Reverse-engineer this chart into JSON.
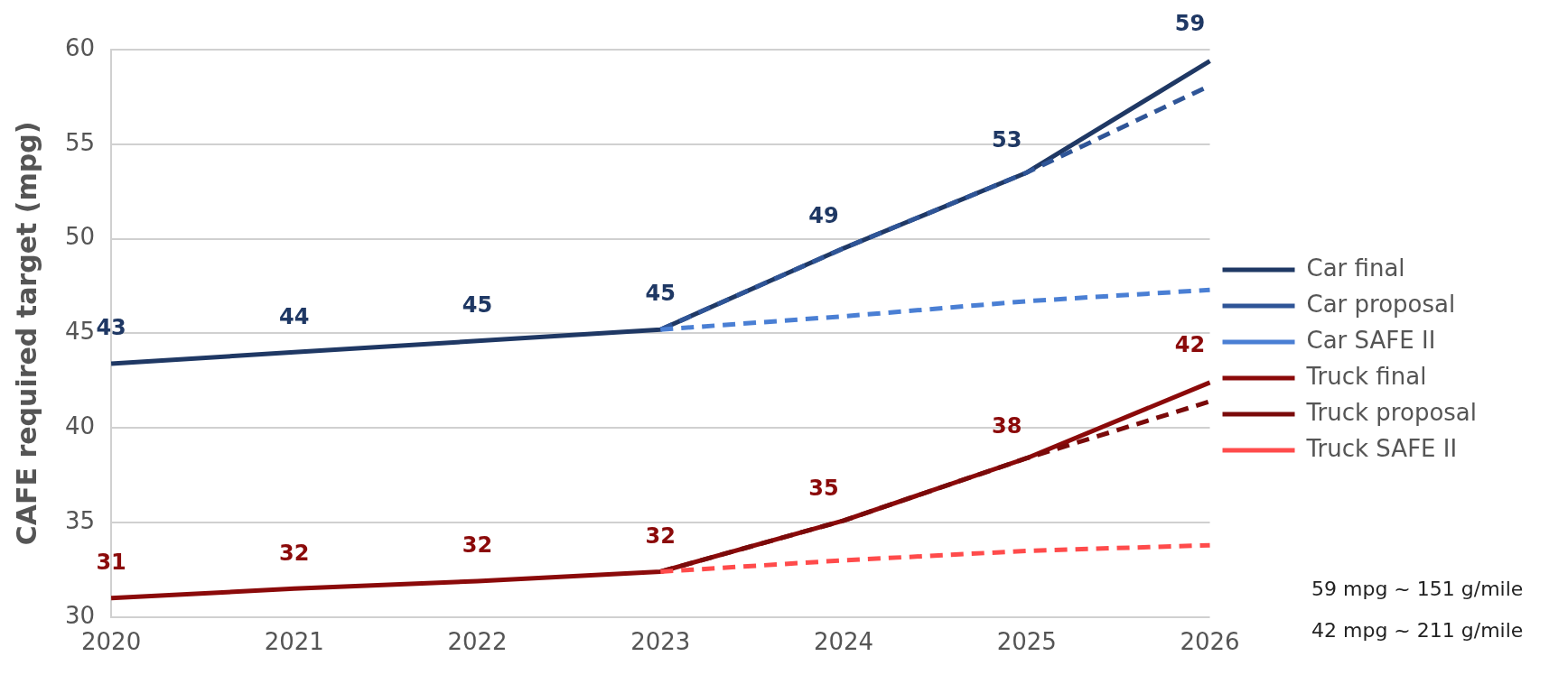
{
  "chart_data": {
    "type": "line",
    "ylabel": "CAFE required target (mpg)",
    "categories": [
      "2020",
      "2021",
      "2022",
      "2023",
      "2024",
      "2025",
      "2026"
    ],
    "series": [
      {
        "name": "Car final",
        "color": "#1f3864",
        "line_style": "solid",
        "values": [
          43.4,
          44.0,
          44.6,
          45.2,
          49.5,
          53.5,
          59.4
        ],
        "value_labels": [
          "43",
          "44",
          "45",
          "45",
          "49",
          "53",
          "59"
        ]
      },
      {
        "name": "Car proposal",
        "color": "#2f5597",
        "line_style": "dashed",
        "values": [
          null,
          null,
          null,
          45.2,
          49.5,
          53.5,
          58.1
        ]
      },
      {
        "name": "Car SAFE II",
        "color": "#4a7fd4",
        "line_style": "dashed",
        "values": [
          null,
          null,
          null,
          45.2,
          45.9,
          46.7,
          47.3
        ]
      },
      {
        "name": "Truck final",
        "color": "#8b0a0a",
        "line_style": "solid",
        "values": [
          31.0,
          31.5,
          31.9,
          32.4,
          35.1,
          38.4,
          42.4
        ],
        "value_labels": [
          "31",
          "32",
          "32",
          "32",
          "35",
          "38",
          "42"
        ]
      },
      {
        "name": "Truck proposal",
        "color": "#7a0a0a",
        "line_style": "dashed",
        "values": [
          null,
          null,
          null,
          32.4,
          35.1,
          38.4,
          41.4
        ]
      },
      {
        "name": "Truck SAFE II",
        "color": "#ff4b4b",
        "line_style": "dashed",
        "values": [
          null,
          null,
          null,
          32.4,
          33.0,
          33.5,
          33.8
        ]
      }
    ],
    "ylim": [
      30,
      60
    ],
    "yticks": [
      30,
      35,
      40,
      45,
      50,
      55,
      60
    ],
    "grid": "y",
    "legend": "right",
    "marker": "none",
    "annotations": [
      "59 mpg ~ 151 g/mile",
      "42 mpg ~ 211 g/mile"
    ]
  }
}
